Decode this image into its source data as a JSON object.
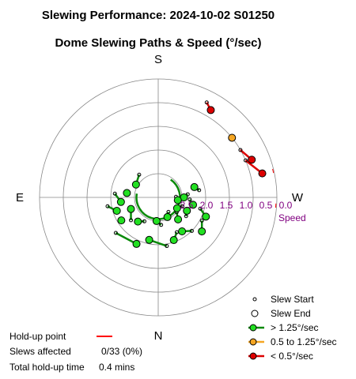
{
  "chart_data": {
    "type": "scatter",
    "title": "Slewing Performance: 2024-10-02 S01250",
    "subtitle": "Dome Slewing Paths & Speed (°/sec)",
    "compass": {
      "top": "S",
      "left": "E",
      "right": "W",
      "bottom": "N"
    },
    "radial_axis": {
      "label": "Speed",
      "ticks": [
        "2.5",
        "2.0",
        "1.5",
        "1.0",
        "0.5",
        "0.0"
      ],
      "speed_max": 3.0
    },
    "legend": {
      "placement": "bottom-right",
      "entries": [
        {
          "label": "Slew Start",
          "kind": "start",
          "color": "#000000"
        },
        {
          "label": "Slew End",
          "kind": "end",
          "color": "#000000"
        },
        {
          "label": "> 1.25°/sec",
          "kind": "fast",
          "color": "#00cc00"
        },
        {
          "label": "0.5 to 1.25°/sec",
          "kind": "medium",
          "color": "#f5a623"
        },
        {
          "label": "< 0.5°/sec",
          "kind": "slow",
          "color": "#dd0000"
        }
      ]
    },
    "colors": {
      "fast": "#22e022",
      "fast_line": "#0a8a0a",
      "medium": "#f5a623",
      "slow": "#dd0000",
      "holdup": "#ff0000",
      "grid": "#888888",
      "speed_text": "#800080"
    },
    "holdup_azimuths": [
      265,
      282
    ],
    "slews": [
      {
        "az": 283,
        "speed": 0.3,
        "to_az": 293,
        "to_speed": 0.6,
        "cls": "slow"
      },
      {
        "az": 292,
        "speed": 0.45,
        "to_az": 300,
        "to_speed": 0.6,
        "cls": "slow"
      },
      {
        "az": 309,
        "speed": 0.6,
        "cls": "medium"
      },
      {
        "az": 329,
        "speed": 0.42,
        "to_az": 333,
        "to_speed": 0.3,
        "cls": "slow"
      },
      {
        "az": 155,
        "speed": 1.7,
        "to_az": 130,
        "to_speed": 1.6,
        "cls": "fast"
      },
      {
        "az": 122,
        "speed": 1.9,
        "cls": "fast"
      },
      {
        "az": 108,
        "speed": 1.9,
        "to_az": 100,
        "to_speed": 1.7,
        "cls": "fast"
      },
      {
        "az": 97,
        "speed": 2.05,
        "to_az": 85,
        "to_speed": 1.9,
        "cls": "fast"
      },
      {
        "az": 82,
        "speed": 2.2,
        "cls": "fast"
      },
      {
        "az": 113,
        "speed": 2.25,
        "to_az": 130,
        "to_speed": 2.1,
        "cls": "fast"
      },
      {
        "az": 140,
        "speed": 2.2,
        "to_az": 150,
        "to_speed": 2.3,
        "cls": "fast"
      },
      {
        "az": 168,
        "speed": 1.9,
        "to_az": 190,
        "to_speed": 1.75,
        "cls": "fast"
      },
      {
        "az": 200,
        "speed": 1.85,
        "to_az": 208,
        "to_speed": 2.0,
        "cls": "fast"
      },
      {
        "az": 215,
        "speed": 1.95,
        "to_az": 225,
        "to_speed": 1.8,
        "cls": "fast"
      },
      {
        "az": 232,
        "speed": 1.6,
        "to_az": 242,
        "to_speed": 1.75,
        "cls": "fast"
      },
      {
        "az": 248,
        "speed": 1.7,
        "to_az": 255,
        "to_speed": 1.9,
        "cls": "fast"
      },
      {
        "az": 258,
        "speed": 2.1,
        "to_az": 266,
        "to_speed": 2.2,
        "cls": "fast"
      },
      {
        "az": 270,
        "speed": 2.35,
        "to_az": 276,
        "to_speed": 2.25,
        "cls": "fast"
      },
      {
        "az": 222,
        "speed": 2.25,
        "to_az": 231,
        "to_speed": 2.4,
        "cls": "fast"
      },
      {
        "az": 240,
        "speed": 2.45,
        "to_az": 250,
        "to_speed": 2.35,
        "cls": "fast"
      },
      {
        "az": 262,
        "speed": 2.5,
        "to_az": 272,
        "to_speed": 2.55,
        "cls": "fast"
      },
      {
        "az": 205,
        "speed": 2.45,
        "to_az": 215,
        "to_speed": 2.55,
        "cls": "fast"
      },
      {
        "az": 60,
        "speed": 2.35,
        "to_az": 40,
        "to_speed": 2.25,
        "cls": "fast"
      },
      {
        "az": 176,
        "speed": 2.4,
        "to_az": 186,
        "to_speed": 2.3,
        "cls": "fast"
      },
      {
        "az": 286,
        "speed": 2.05,
        "to_az": 280,
        "to_speed": 1.95,
        "cls": "fast"
      },
      {
        "az": 245,
        "speed": 2.2,
        "to_az": 236,
        "to_speed": 2.15,
        "cls": "fast"
      }
    ],
    "return_arc": {
      "from_az": 80,
      "to_az": 325,
      "speed": 2.45
    }
  },
  "stats": [
    {
      "label": "Hold-up point",
      "value": ""
    },
    {
      "label": "Slews affected",
      "value": "0/33 (0%)"
    },
    {
      "label": "Total hold-up time",
      "value": "0.4 mins"
    }
  ]
}
